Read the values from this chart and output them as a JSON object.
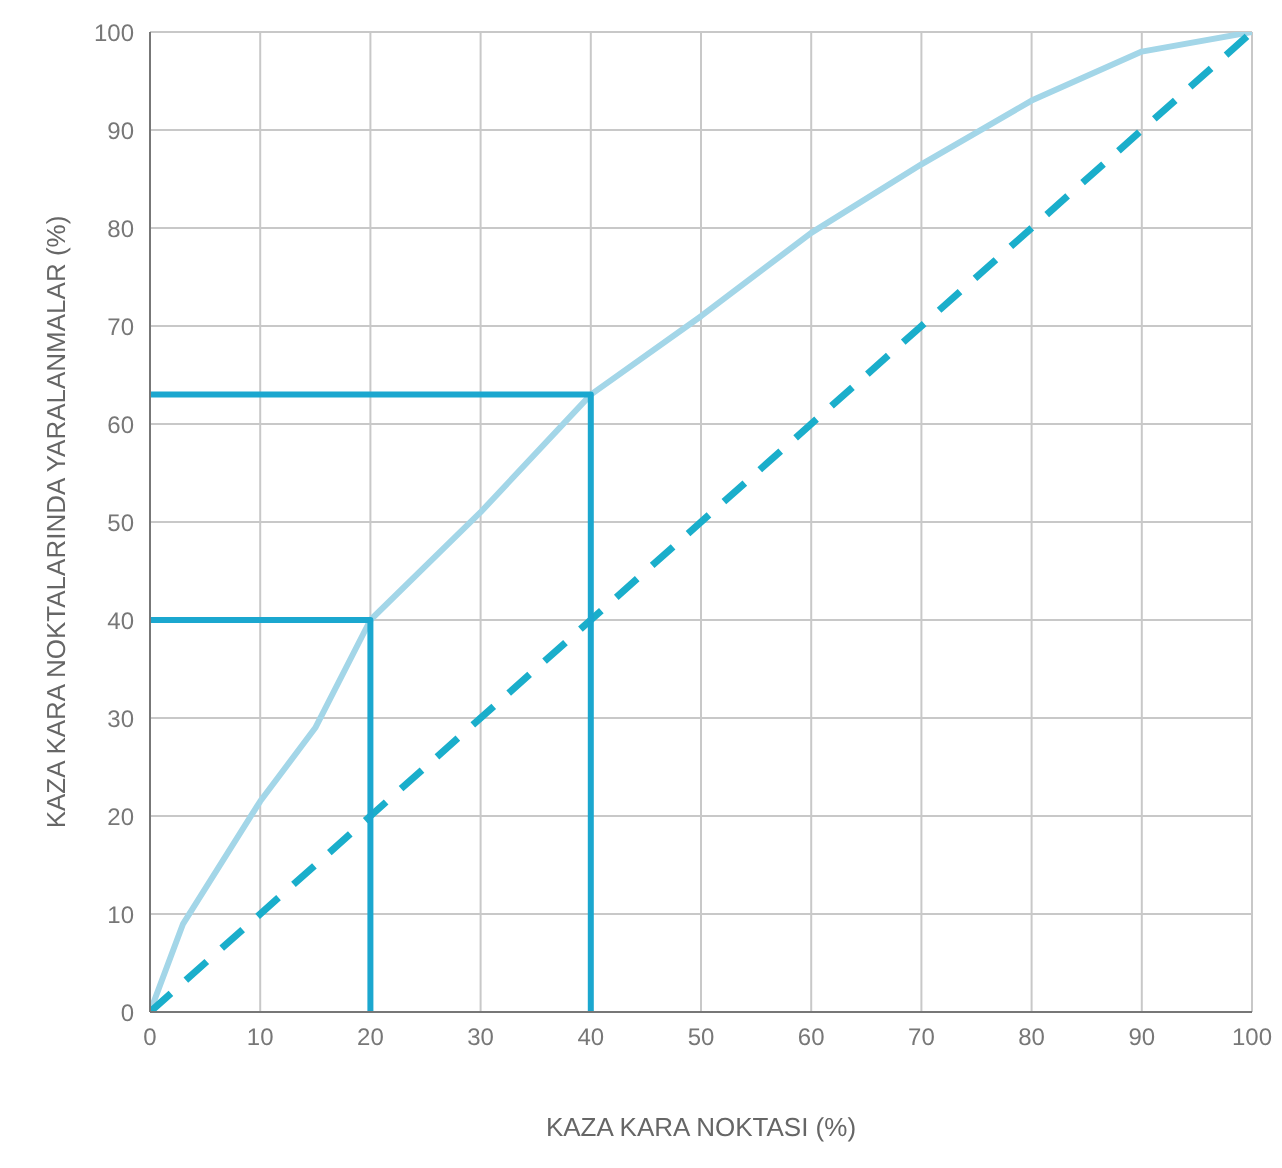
{
  "chart_data": {
    "type": "line",
    "xlabel": "KAZA KARA NOKTASI (%)",
    "ylabel": "KAZA KARA NOKTALARINDA YARALANMALAR (%)",
    "xlim": [
      0,
      100
    ],
    "ylim": [
      0,
      100
    ],
    "xticks": [
      0,
      10,
      20,
      30,
      40,
      50,
      60,
      70,
      80,
      90,
      100
    ],
    "yticks": [
      0,
      10,
      20,
      30,
      40,
      50,
      60,
      70,
      80,
      90,
      100
    ],
    "grid": true,
    "marker": "none",
    "series": [
      {
        "color": "#a3d6e8",
        "x": [
          0,
          3,
          10,
          15,
          20,
          30,
          40,
          50,
          60,
          70,
          80,
          90,
          100
        ],
        "values": [
          0,
          9,
          21.5,
          29,
          40,
          51,
          63,
          71,
          79.5,
          86.5,
          93,
          98,
          100
        ],
        "line_style": "solid"
      },
      {
        "color": "#1aaecb",
        "x": [
          0,
          100
        ],
        "values": [
          0,
          100
        ],
        "line_style": "dashed"
      },
      {
        "color": "#1ba7cf",
        "x": [
          0,
          20,
          20
        ],
        "values": [
          40,
          40,
          0
        ],
        "line_style": "solid"
      },
      {
        "color": "#1ba7cf",
        "x": [
          0,
          40,
          40
        ],
        "values": [
          63,
          63,
          0
        ],
        "line_style": "solid"
      }
    ]
  }
}
